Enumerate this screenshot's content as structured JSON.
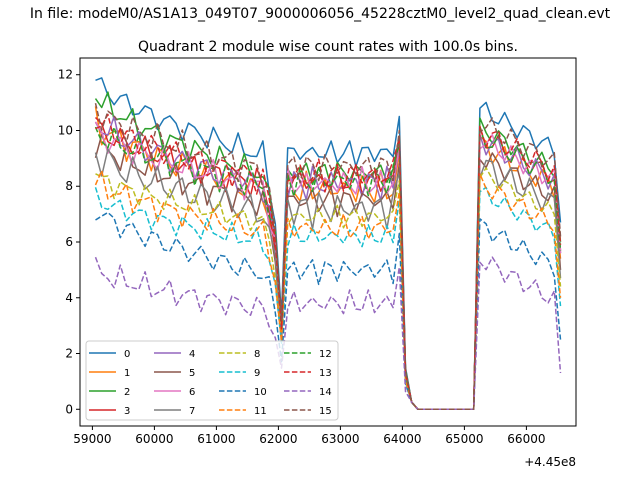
{
  "chart_data": {
    "type": "line",
    "suptitle": "In file: modeM0/AS1A13_049T07_9000006056_45228cztM0_level2_quad_clean.evt",
    "title": "Quadrant 2 module wise count rates with 100.0s bins.",
    "xlabel": "",
    "ylabel": "",
    "x_offset_label": "+4.45e8",
    "xlim": [
      58800,
      66800
    ],
    "ylim": [
      -0.6,
      12.6
    ],
    "x_ticks": [
      59000,
      60000,
      61000,
      62000,
      63000,
      64000,
      65000,
      66000
    ],
    "x_tick_labels": [
      "59000",
      "60000",
      "61000",
      "62000",
      "63000",
      "64000",
      "65000",
      "66000"
    ],
    "y_ticks": [
      0,
      2,
      4,
      6,
      8,
      10,
      12
    ],
    "y_tick_labels": [
      "0",
      "2",
      "4",
      "6",
      "8",
      "10",
      "12"
    ],
    "legend_position": "lower-left",
    "legend_columns": 4,
    "x_segments": [
      {
        "start": 59050,
        "end": 62050,
        "step": 100
      },
      {
        "start": 62150,
        "end": 63950,
        "step": 100
      },
      {
        "start": 64050,
        "end": 65150,
        "step": 100
      },
      {
        "start": 65250,
        "end": 66550,
        "step": 100
      }
    ],
    "series": [
      {
        "name": "0",
        "color": "#1f77b4",
        "style": "solid",
        "base": 11.8,
        "end": 8.9,
        "amp": 0.35
      },
      {
        "name": "1",
        "color": "#ff7f0e",
        "style": "solid",
        "base": 10.3,
        "end": 7.6,
        "amp": 0.45
      },
      {
        "name": "2",
        "color": "#2ca02c",
        "style": "solid",
        "base": 11.3,
        "end": 8.2,
        "amp": 0.35
      },
      {
        "name": "3",
        "color": "#d62728",
        "style": "solid",
        "base": 10.2,
        "end": 7.9,
        "amp": 0.4
      },
      {
        "name": "4",
        "color": "#9467bd",
        "style": "solid",
        "base": 10.4,
        "end": 7.8,
        "amp": 0.45
      },
      {
        "name": "5",
        "color": "#8c564b",
        "style": "solid",
        "base": 9.6,
        "end": 7.2,
        "amp": 0.4
      },
      {
        "name": "6",
        "color": "#e377c2",
        "style": "solid",
        "base": 10.0,
        "end": 7.8,
        "amp": 0.4
      },
      {
        "name": "7",
        "color": "#7f7f7f",
        "style": "solid",
        "base": 9.2,
        "end": 6.9,
        "amp": 0.5
      },
      {
        "name": "8",
        "color": "#bcbd22",
        "style": "dashed",
        "base": 8.4,
        "end": 6.6,
        "amp": 0.3
      },
      {
        "name": "9",
        "color": "#17becf",
        "style": "dashed",
        "base": 7.6,
        "end": 5.9,
        "amp": 0.3
      },
      {
        "name": "10",
        "color": "#1f77b4",
        "style": "dashed",
        "base": 7.2,
        "end": 4.7,
        "amp": 0.35
      },
      {
        "name": "11",
        "color": "#ff7f0e",
        "style": "dashed",
        "base": 8.2,
        "end": 6.2,
        "amp": 0.35
      },
      {
        "name": "12",
        "color": "#2ca02c",
        "style": "dashed",
        "base": 10.0,
        "end": 7.9,
        "amp": 0.4
      },
      {
        "name": "13",
        "color": "#d62728",
        "style": "dashed",
        "base": 10.4,
        "end": 8.1,
        "amp": 0.45
      },
      {
        "name": "14",
        "color": "#9467bd",
        "style": "dashed",
        "base": 5.0,
        "end": 3.5,
        "amp": 0.35
      },
      {
        "name": "15",
        "color": "#8c564b",
        "style": "dashed",
        "base": 10.8,
        "end": 8.4,
        "amp": 0.4
      }
    ]
  }
}
